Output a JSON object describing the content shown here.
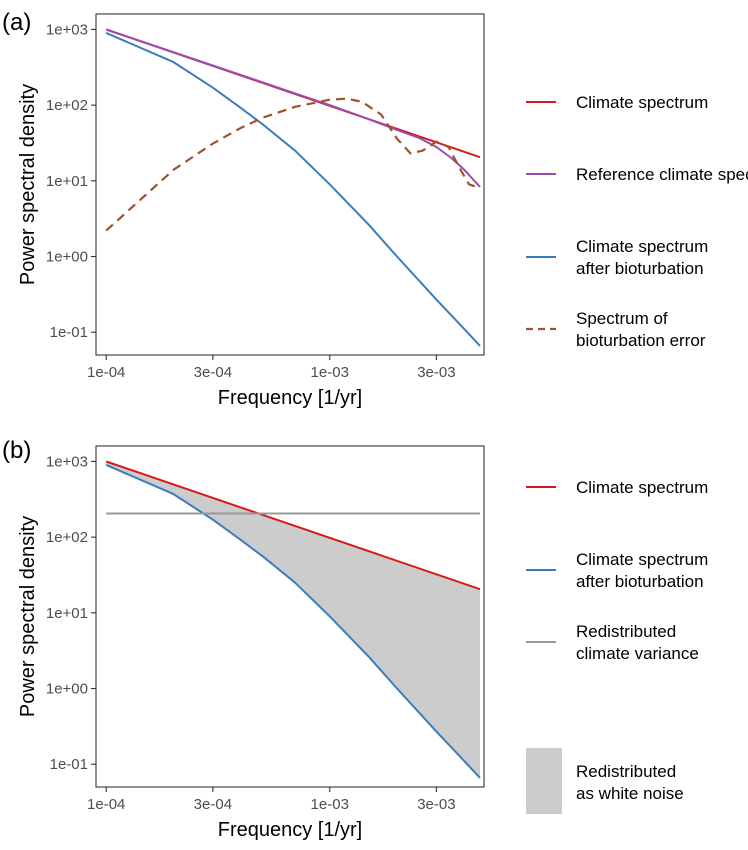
{
  "chart_data": [
    {
      "type": "line",
      "panel_label": "(a)",
      "xlabel": "Frequency [1/yr]",
      "ylabel": "Power spectral density",
      "x_scale": "log",
      "y_scale": "log",
      "xlim": [
        9e-05,
        0.0049
      ],
      "ylim": [
        0.05,
        1600
      ],
      "x_ticks": [
        {
          "value": 0.0001,
          "label": "1e-04"
        },
        {
          "value": 0.0003,
          "label": "3e-04"
        },
        {
          "value": 0.001,
          "label": "1e-03"
        },
        {
          "value": 0.003,
          "label": "3e-03"
        }
      ],
      "y_ticks": [
        {
          "value": 1000,
          "label": "1e+03"
        },
        {
          "value": 100,
          "label": "1e+02"
        },
        {
          "value": 10,
          "label": "1e+01"
        },
        {
          "value": 1,
          "label": "1e+00"
        },
        {
          "value": 0.1,
          "label": "1e-01"
        }
      ],
      "grid": false,
      "legend_position": "right",
      "series": [
        {
          "name": "Climate spectrum",
          "color": "#d7191c",
          "style": "solid",
          "x": [
            0.0001,
            0.0047
          ],
          "y": [
            1000,
            20.5
          ]
        },
        {
          "name": "Reference climate spectrum",
          "color": "#9b4dae",
          "style": "solid",
          "x": [
            0.0001,
            0.0002,
            0.0004,
            0.0007,
            0.001,
            0.0015,
            0.002,
            0.0025,
            0.003,
            0.0035,
            0.004,
            0.0047
          ],
          "y": [
            1000,
            500,
            250,
            143,
            100,
            65,
            47,
            37,
            28,
            20,
            14,
            8.3
          ]
        },
        {
          "name": "Climate spectrum\nafter bioturbation",
          "color": "#3a7dbd",
          "style": "solid",
          "x": [
            0.0001,
            0.0002,
            0.0003,
            0.0004,
            0.0005,
            0.0007,
            0.001,
            0.0015,
            0.002,
            0.003,
            0.004,
            0.0047
          ],
          "y": [
            900,
            370,
            170,
            92,
            56,
            25,
            9,
            2.6,
            1.0,
            0.27,
            0.11,
            0.066
          ]
        },
        {
          "name": "Spectrum of\nbioturbation error",
          "color": "#a0522d",
          "style": "dashed",
          "x": [
            0.0001,
            0.00015,
            0.0002,
            0.0003,
            0.0004,
            0.0005,
            0.0007,
            0.001,
            0.0012,
            0.0014,
            0.0017,
            0.002,
            0.0023,
            0.0026,
            0.003,
            0.0034,
            0.0038,
            0.0042,
            0.0047
          ],
          "y": [
            2.2,
            6.5,
            14,
            31,
            50,
            68,
            95,
            118,
            122,
            110,
            75,
            36,
            23,
            25,
            33,
            28,
            15,
            9,
            8
          ]
        }
      ]
    },
    {
      "type": "area",
      "panel_label": "(b)",
      "xlabel": "Frequency [1/yr]",
      "ylabel": "Power spectral density",
      "x_scale": "log",
      "y_scale": "log",
      "xlim": [
        9e-05,
        0.0049
      ],
      "ylim": [
        0.05,
        1600
      ],
      "x_ticks": [
        {
          "value": 0.0001,
          "label": "1e-04"
        },
        {
          "value": 0.0003,
          "label": "3e-04"
        },
        {
          "value": 0.001,
          "label": "1e-03"
        },
        {
          "value": 0.003,
          "label": "3e-03"
        }
      ],
      "y_ticks": [
        {
          "value": 1000,
          "label": "1e+03"
        },
        {
          "value": 100,
          "label": "1e+02"
        },
        {
          "value": 10,
          "label": "1e+01"
        },
        {
          "value": 1,
          "label": "1e+00"
        },
        {
          "value": 0.1,
          "label": "1e-01"
        }
      ],
      "grid": false,
      "legend_position": "right",
      "series": [
        {
          "name": "Climate spectrum",
          "color": "#d7191c",
          "style": "solid",
          "x": [
            0.0001,
            0.0047
          ],
          "y": [
            1000,
            20.5
          ]
        },
        {
          "name": "Climate spectrum\nafter bioturbation",
          "color": "#3a7dbd",
          "style": "solid",
          "x": [
            0.0001,
            0.0002,
            0.0003,
            0.0004,
            0.0005,
            0.0007,
            0.001,
            0.0015,
            0.002,
            0.003,
            0.004,
            0.0047
          ],
          "y": [
            900,
            370,
            170,
            92,
            56,
            25,
            9,
            2.6,
            1.0,
            0.27,
            0.11,
            0.066
          ]
        },
        {
          "name": "Redistributed\nclimate variance",
          "color": "#999999",
          "style": "solid",
          "x": [
            0.0001,
            0.0047
          ],
          "y": [
            205,
            205
          ]
        }
      ],
      "area": {
        "name": "Redistributed\nas white noise",
        "color": "#cccccc",
        "between": [
          "Climate spectrum",
          "Climate spectrum\nafter bioturbation"
        ]
      }
    }
  ]
}
